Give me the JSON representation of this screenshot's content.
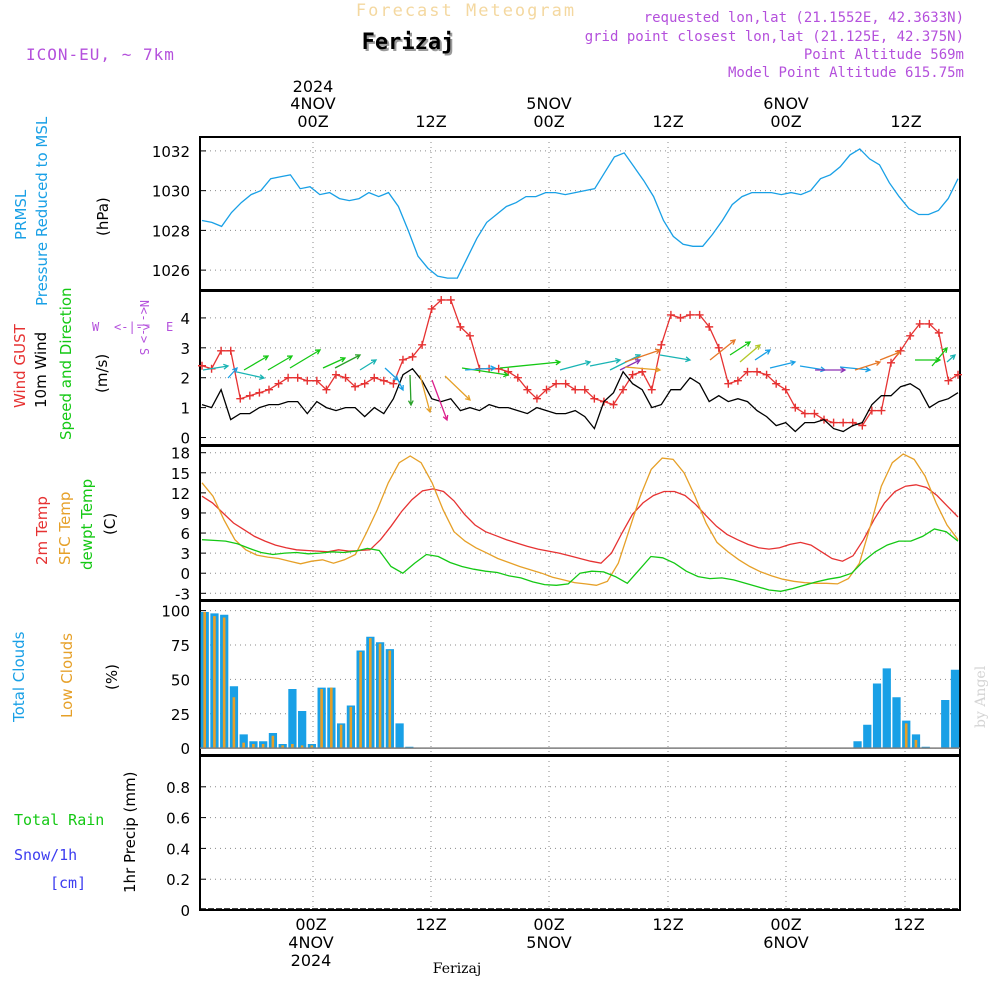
{
  "header": {
    "title": "Forecast Meteogram",
    "location": "Ferizaj",
    "model": "ICON-EU, ~ 7km",
    "requested": "requested lon,lat (21.1552E, 42.3633N)",
    "grid_point": "grid point closest lon,lat (21.125E, 42.375N)",
    "point_altitude": "Point Altitude 569m",
    "model_altitude": "Model Point Altitude 615.75m"
  },
  "footer": {
    "location": "Ferizaj",
    "credit": "by Angel"
  },
  "colors": {
    "pressure": "#19a0e6",
    "gust": "#e63232",
    "wind": "#000000",
    "temp": "#e63232",
    "sfc": "#e6a028",
    "dewpt": "#14c814",
    "total_clouds": "#19a0e6",
    "low_clouds": "#e6a028",
    "rain": "#14c814",
    "snow": "#3c3cf0",
    "label_purple": "#b450dc"
  },
  "time_axis": {
    "top": [
      {
        "hour": "00Z",
        "day": "4NOV",
        "year": "2024"
      },
      {
        "hour": "12Z",
        "day": "",
        "year": ""
      },
      {
        "hour": "00Z",
        "day": "5NOV",
        "year": ""
      },
      {
        "hour": "12Z",
        "day": "",
        "year": ""
      },
      {
        "hour": "00Z",
        "day": "6NOV",
        "year": ""
      },
      {
        "hour": "12Z",
        "day": "",
        "year": ""
      }
    ],
    "bottom": [
      {
        "hour": "00Z",
        "day": "4NOV",
        "year": "2024"
      },
      {
        "hour": "12Z",
        "day": "",
        "year": ""
      },
      {
        "hour": "00Z",
        "day": "5NOV",
        "year": ""
      },
      {
        "hour": "12Z",
        "day": "",
        "year": ""
      },
      {
        "hour": "00Z",
        "day": "6NOV",
        "year": ""
      },
      {
        "hour": "12Z",
        "day": "",
        "year": ""
      }
    ]
  },
  "panel_labels": {
    "pressure": {
      "name": "PRMSL",
      "desc": "Pressure Reduced to MSL",
      "unit": "(hPa)"
    },
    "wind": {
      "gust": "Wind GUST",
      "wind": "10m Wind",
      "dir": "Speed and Direction",
      "unit": "(m/s)",
      "compass": {
        "n": "N",
        "s": "S",
        "w": "W",
        "e": "E",
        "we": "<-|->"
      }
    },
    "temp": {
      "t2m": "2m Temp",
      "sfc": "SFC Temp",
      "dew": "dewpt Temp",
      "unit": "(C)"
    },
    "clouds": {
      "total": "Total Clouds",
      "low": "Low Clouds",
      "unit": "(%)"
    },
    "precip": {
      "rain": "Total Rain",
      "snow": "Snow/1h",
      "snow_unit": "[cm]",
      "unit": "1hr Precip (mm)"
    }
  },
  "chart_data": [
    {
      "id": "pressure",
      "type": "line",
      "ylabel": "(hPa)",
      "ylim": [
        1025.0,
        1032.7
      ],
      "yticks": [
        1026,
        1028,
        1030,
        1032
      ],
      "ytick_labels": [
        "1026",
        "1028",
        "1030",
        "1032"
      ],
      "series": [
        {
          "name": "PRMSL",
          "values": [
            1028.5,
            1028.4,
            1028.2,
            1028.9,
            1029.4,
            1029.8,
            1030.0,
            1030.6,
            1030.7,
            1030.8,
            1030.1,
            1030.2,
            1029.8,
            1029.9,
            1029.6,
            1029.5,
            1029.6,
            1029.9,
            1029.7,
            1029.9,
            1029.2,
            1028.0,
            1026.7,
            1026.1,
            1025.7,
            1025.6,
            1025.6,
            1026.6,
            1027.6,
            1028.4,
            1028.8,
            1029.2,
            1029.4,
            1029.7,
            1029.7,
            1029.9,
            1029.9,
            1029.8,
            1029.9,
            1030.0,
            1030.1,
            1030.9,
            1031.7,
            1031.9,
            1031.2,
            1030.5,
            1029.7,
            1028.5,
            1027.7,
            1027.3,
            1027.2,
            1027.2,
            1027.8,
            1028.5,
            1029.3,
            1029.7,
            1029.9,
            1029.9,
            1029.9,
            1029.8,
            1029.9,
            1029.8,
            1030.0,
            1030.6,
            1030.8,
            1031.2,
            1031.8,
            1032.1,
            1031.6,
            1031.3,
            1030.4,
            1029.7,
            1029.1,
            1028.8,
            1028.8,
            1029.0,
            1029.6,
            1030.6
          ]
        }
      ]
    },
    {
      "id": "wind",
      "type": "line",
      "ylabel": "(m/s)",
      "ylim": [
        -0.25,
        4.9
      ],
      "yticks": [
        0,
        1,
        2,
        3,
        4
      ],
      "ytick_labels": [
        "0",
        "1",
        "2",
        "3",
        "4"
      ],
      "series": [
        {
          "name": "Wind GUST",
          "values": [
            2.4,
            2.3,
            2.9,
            2.9,
            1.3,
            1.4,
            1.5,
            1.6,
            1.8,
            2.0,
            2.0,
            1.9,
            1.9,
            1.6,
            2.1,
            2.0,
            1.7,
            1.8,
            2.0,
            1.9,
            1.8,
            2.6,
            2.7,
            3.1,
            4.3,
            4.6,
            4.6,
            3.7,
            3.4,
            2.3,
            2.3,
            2.3,
            2.2,
            2.0,
            1.6,
            1.3,
            1.6,
            1.8,
            1.8,
            1.6,
            1.6,
            1.3,
            1.2,
            1.1,
            1.6,
            2.1,
            2.2,
            1.6,
            3.1,
            4.1,
            4.0,
            4.1,
            4.1,
            3.7,
            3.0,
            1.8,
            1.9,
            2.2,
            2.2,
            2.1,
            1.8,
            1.6,
            1.0,
            0.8,
            0.8,
            0.6,
            0.5,
            0.5,
            0.5,
            0.4,
            0.9,
            0.9,
            2.5,
            2.9,
            3.4,
            3.8,
            3.8,
            3.5,
            1.9,
            2.1
          ]
        },
        {
          "name": "10m Wind",
          "values": [
            1.1,
            1.0,
            1.6,
            0.6,
            0.8,
            0.8,
            1.0,
            1.1,
            1.1,
            1.2,
            1.2,
            0.8,
            1.2,
            1.0,
            0.9,
            1.0,
            1.0,
            0.7,
            1.0,
            0.8,
            1.3,
            2.1,
            2.3,
            1.9,
            1.3,
            1.2,
            1.3,
            0.9,
            1.0,
            0.9,
            1.1,
            1.0,
            1.0,
            0.9,
            0.8,
            1.0,
            0.9,
            0.8,
            0.8,
            0.9,
            0.7,
            0.3,
            1.2,
            1.5,
            2.2,
            1.8,
            1.6,
            1.0,
            1.1,
            1.6,
            1.6,
            2.0,
            1.8,
            1.2,
            1.4,
            1.2,
            1.3,
            1.2,
            0.9,
            0.7,
            0.4,
            0.5,
            0.2,
            0.5,
            0.5,
            0.6,
            0.3,
            0.2,
            0.4,
            0.5,
            1.1,
            1.4,
            1.4,
            1.7,
            1.8,
            1.6,
            1.0,
            1.2,
            1.3,
            1.5
          ]
        }
      ]
    },
    {
      "id": "temperature",
      "type": "line",
      "ylabel": "(C)",
      "ylim": [
        -4.0,
        19.0
      ],
      "yticks": [
        -3,
        0,
        3,
        6,
        9,
        12,
        15,
        18
      ],
      "ytick_labels": [
        "-3",
        "0",
        "3",
        "6",
        "9",
        "12",
        "15",
        "18"
      ],
      "series": [
        {
          "name": "2m Temp",
          "values": [
            11.5,
            10.5,
            9.0,
            7.5,
            6.5,
            5.5,
            4.8,
            4.2,
            3.8,
            3.5,
            3.4,
            3.3,
            3.2,
            3.5,
            3.3,
            3.4,
            3.5,
            5.0,
            7.0,
            9.2,
            11.0,
            12.3,
            12.6,
            12.2,
            10.8,
            8.8,
            7.2,
            6.2,
            5.6,
            5.0,
            4.5,
            4.0,
            3.6,
            3.3,
            3.0,
            2.6,
            2.2,
            1.8,
            1.5,
            3.0,
            6.0,
            8.8,
            10.5,
            11.6,
            12.2,
            12.2,
            11.6,
            10.3,
            8.6,
            7.0,
            5.8,
            5.0,
            4.3,
            3.8,
            3.6,
            3.8,
            4.3,
            4.6,
            4.2,
            3.2,
            2.2,
            1.8,
            2.6,
            5.0,
            8.0,
            10.5,
            12.2,
            13.0,
            13.2,
            12.8,
            11.6,
            10.0,
            8.4
          ]
        },
        {
          "name": "SFC Temp",
          "values": [
            13.5,
            11.5,
            8.0,
            5.0,
            3.5,
            2.7,
            2.4,
            2.2,
            1.8,
            1.4,
            1.8,
            2.0,
            1.5,
            2.0,
            2.8,
            6.0,
            9.5,
            13.5,
            16.5,
            17.5,
            16.5,
            13.5,
            9.5,
            6.2,
            4.8,
            3.8,
            3.0,
            2.2,
            1.6,
            1.0,
            0.5,
            0.0,
            -0.6,
            -1.0,
            -1.4,
            -1.6,
            -1.8,
            -1.2,
            1.5,
            6.5,
            11.5,
            15.5,
            17.2,
            17.0,
            15.0,
            11.5,
            7.5,
            4.6,
            3.2,
            2.0,
            1.0,
            0.2,
            -0.4,
            -0.9,
            -1.2,
            -1.4,
            -1.5,
            -1.5,
            -1.6,
            -0.8,
            1.5,
            7.0,
            13.0,
            16.5,
            17.8,
            17.0,
            14.5,
            10.5,
            7.2,
            5.0
          ]
        },
        {
          "name": "dewpt Temp",
          "values": [
            5.0,
            4.9,
            4.8,
            4.4,
            3.7,
            3.1,
            2.8,
            3.0,
            3.1,
            2.9,
            3.0,
            3.2,
            3.1,
            3.3,
            3.7,
            3.4,
            1.0,
            0.0,
            1.5,
            2.8,
            2.5,
            1.6,
            1.0,
            0.6,
            0.3,
            0.1,
            -0.4,
            -0.7,
            -1.3,
            -1.7,
            -1.8,
            -1.6,
            0.0,
            0.3,
            0.2,
            -0.5,
            -1.5,
            0.5,
            2.5,
            2.3,
            1.5,
            0.3,
            -0.5,
            -0.8,
            -0.7,
            -1.0,
            -1.5,
            -2.0,
            -2.5,
            -2.7,
            -2.3,
            -1.8,
            -1.3,
            -0.9,
            -0.6,
            0.0,
            1.8,
            3.2,
            4.2,
            4.8,
            4.8,
            5.5,
            6.6,
            6.2,
            4.8
          ]
        }
      ]
    },
    {
      "id": "clouds",
      "type": "bar",
      "ylabel": "(%)",
      "ylim": [
        -5,
        107
      ],
      "yticks": [
        0,
        25,
        50,
        75,
        100
      ],
      "ytick_labels": [
        "0",
        "25",
        "50",
        "75",
        "100"
      ],
      "series": [
        {
          "name": "Total Clouds",
          "values": [
            99,
            98,
            97,
            45,
            10,
            5,
            5,
            11,
            3,
            43,
            27,
            3,
            44,
            44,
            18,
            31,
            71,
            81,
            77,
            72,
            18,
            1,
            0,
            0,
            0,
            0,
            0,
            0,
            0,
            0,
            0,
            0,
            0,
            0,
            0,
            0,
            0,
            0,
            0,
            0,
            0,
            0,
            0,
            0,
            0,
            0,
            0,
            0,
            0,
            0,
            0,
            0,
            0,
            0,
            0,
            0,
            0,
            0,
            0,
            0,
            0,
            0,
            0,
            0,
            0,
            0,
            0,
            5,
            17,
            47,
            58,
            37,
            20,
            10,
            1,
            0,
            35,
            57
          ]
        },
        {
          "name": "Low Clouds",
          "values": [
            99,
            96,
            95,
            37,
            4,
            3,
            3,
            9,
            2,
            3,
            2,
            2,
            43,
            44,
            17,
            30,
            70,
            80,
            76,
            71,
            0,
            0,
            0,
            0,
            0,
            0,
            0,
            0,
            0,
            0,
            0,
            0,
            0,
            0,
            0,
            0,
            0,
            0,
            0,
            0,
            0,
            0,
            0,
            0,
            0,
            0,
            0,
            0,
            0,
            0,
            0,
            0,
            0,
            0,
            0,
            0,
            0,
            0,
            0,
            0,
            0,
            0,
            0,
            0,
            0,
            0,
            0,
            0,
            0,
            0,
            0,
            0,
            18,
            6,
            0,
            0,
            0,
            0
          ]
        }
      ]
    },
    {
      "id": "precip",
      "type": "bar",
      "ylabel": "1hr Precip (mm)",
      "ylim": [
        0,
        1.0
      ],
      "yticks": [
        0,
        0.2,
        0.4,
        0.6,
        0.8
      ],
      "ytick_labels": [
        "0",
        "0.2",
        "0.4",
        "0.6",
        "0.8"
      ],
      "series": [
        {
          "name": "Total Rain",
          "values": []
        },
        {
          "name": "Snow/1h",
          "values": []
        }
      ]
    }
  ]
}
